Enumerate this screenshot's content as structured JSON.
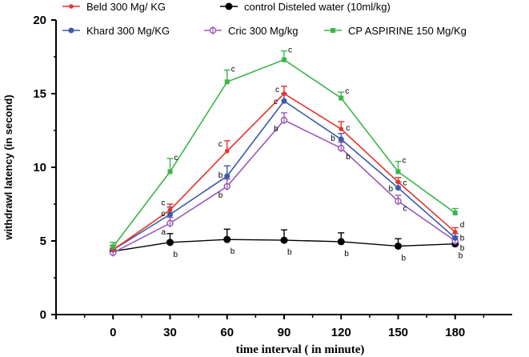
{
  "chart_data": {
    "type": "line",
    "xlabel": "time interval ( in minute)",
    "ylabel": "withdrawl latency (in second)",
    "x": [
      0,
      30,
      60,
      90,
      120,
      150,
      180
    ],
    "xticks": [
      "0",
      "30",
      "60",
      "90",
      "120",
      "150",
      "180"
    ],
    "yticks": [
      "0",
      "5",
      "10",
      "15",
      "20"
    ],
    "xlim": [
      -30,
      210
    ],
    "ylim": [
      0,
      20
    ],
    "grid": false,
    "legend": "top",
    "series": [
      {
        "name": "Beld 300 Mg/ KG",
        "color": "#e8322b",
        "marker": "circle-small",
        "values": [
          4.4,
          7.1,
          11.1,
          15.0,
          12.6,
          9.0,
          5.6
        ],
        "errors": [
          0.3,
          0.4,
          0.7,
          0.5,
          0.5,
          0.3,
          0.3
        ],
        "annotations": [
          "",
          "c",
          "c",
          "c",
          "c",
          "c",
          "d"
        ]
      },
      {
        "name": "control Disteled water (10ml/kg)",
        "color": "#000000",
        "marker": "circle-large",
        "values": [
          4.3,
          4.9,
          5.1,
          5.05,
          4.95,
          4.65,
          4.8
        ],
        "errors": [
          0.2,
          0.6,
          0.7,
          0.7,
          0.6,
          0.5,
          0.2
        ],
        "annotations": [
          "",
          "b",
          "b",
          "b",
          "b",
          "b",
          "b"
        ]
      },
      {
        "name": "Khard 300 Mg/KG",
        "color": "#3a5ba8",
        "marker": "circle",
        "values": [
          4.4,
          6.8,
          9.4,
          14.5,
          11.9,
          8.6,
          5.2
        ],
        "errors": [
          0.3,
          0.5,
          0.7,
          0.5,
          0.4,
          0.4,
          0.3
        ],
        "annotations": [
          "",
          "c",
          "b",
          "c",
          "b",
          "b",
          "b"
        ]
      },
      {
        "name": "Cric  300 Mg/kg",
        "color": "#9b59b6",
        "marker": "open-circle",
        "values": [
          4.2,
          6.2,
          8.7,
          13.2,
          11.3,
          7.7,
          5.0
        ],
        "errors": [
          0.2,
          0.4,
          0.5,
          0.5,
          0.4,
          0.4,
          0.3
        ],
        "annotations": [
          "",
          "a",
          "b",
          "b",
          "b",
          "c",
          "b"
        ]
      },
      {
        "name": "CP ASPIRINE 150 Mg/Kg",
        "color": "#3cb54a",
        "marker": "square",
        "values": [
          4.6,
          9.7,
          15.8,
          17.3,
          14.7,
          9.7,
          6.9
        ],
        "errors": [
          0.3,
          0.9,
          0.8,
          0.6,
          0.4,
          0.7,
          0.3
        ],
        "annotations": [
          "",
          "c",
          "c",
          "c",
          "c",
          "c",
          ""
        ]
      }
    ]
  }
}
